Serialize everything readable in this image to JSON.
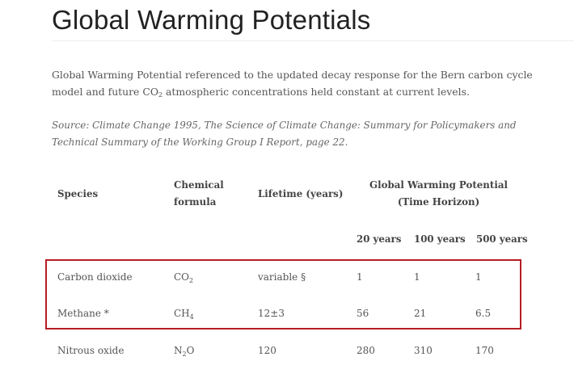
{
  "page": {
    "title": "Global Warming Potentials",
    "intro_text": "Global Warming Potential referenced to the updated decay response for the Bern carbon cycle model and future CO",
    "intro_sub": "2",
    "intro_tail": " atmospheric concentrations held constant at current levels.",
    "source": "Source: Climate Change 1995, The Science of Climate Change: Summary for Policymakers and Technical Summary of the Working Group I Report, page 22."
  },
  "table": {
    "headers": {
      "species": "Species",
      "formula": "Chemical formula",
      "lifetime": "Lifetime (years)",
      "gwp": "Global Warming Potential (Time Horizon)",
      "h20": "20 years",
      "h100": "100 years",
      "h500": "500 years"
    },
    "rows": [
      {
        "species": "Carbon dioxide",
        "formula_base": "CO",
        "formula_sub": "2",
        "lifetime": "variable §",
        "gwp20": "1",
        "gwp100": "1",
        "gwp500": "1"
      },
      {
        "species": "Methane *",
        "formula_base": "CH",
        "formula_sub": "4",
        "lifetime": "12±3",
        "gwp20": "56",
        "gwp100": "21",
        "gwp500": "6.5"
      },
      {
        "species": "Nitrous oxide",
        "formula_base": "N",
        "formula_sub": "2",
        "formula_tail": "O",
        "lifetime": "120",
        "gwp20": "280",
        "gwp100": "310",
        "gwp500": "170"
      }
    ],
    "highlight_color": "#b51d23"
  }
}
